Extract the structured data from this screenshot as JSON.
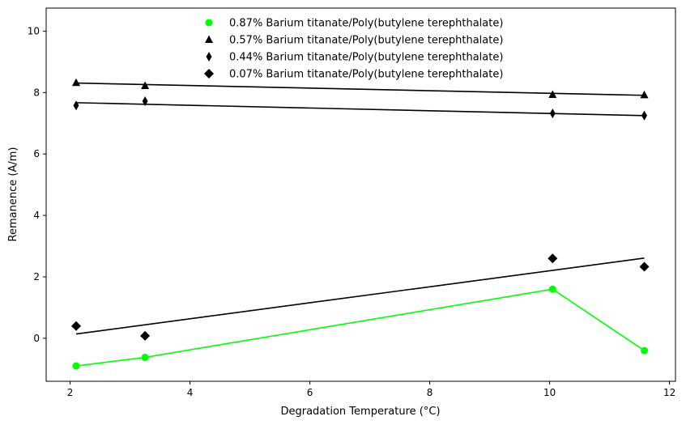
{
  "chart_data": {
    "type": "scatter",
    "title": "",
    "xlabel": "Degradation Temperature (°C)",
    "ylabel": "Remanence (A/m)",
    "xlim": [
      1.6,
      12.1
    ],
    "ylim": [
      -1.4,
      10.75
    ],
    "xticks": [
      2,
      4,
      6,
      8,
      10,
      12
    ],
    "yticks": [
      0,
      2,
      4,
      6,
      8,
      10
    ],
    "x_tick_labels": [
      "2",
      "4",
      "6",
      "8",
      "10",
      "12"
    ],
    "y_tick_labels": [
      "0",
      "2",
      "4",
      "6",
      "8",
      "10"
    ],
    "grid": false,
    "legend_position": "top-center",
    "series": [
      {
        "name": "0.87% Barium titanate/Poly(butylene terephthalate)",
        "marker": "circle",
        "color": "#00ff00",
        "x": [
          2.1,
          3.25,
          10.05,
          11.58
        ],
        "y": [
          -0.9,
          -0.62,
          1.6,
          -0.4
        ],
        "line": {
          "kind": "connect",
          "color": "#00ff00"
        }
      },
      {
        "name": "0.57% Barium titanate/Poly(butylene terephthalate)",
        "marker": "triangle",
        "color": "#000000",
        "x": [
          2.1,
          3.25,
          10.05,
          11.58
        ],
        "y": [
          8.32,
          8.22,
          7.93,
          7.92
        ],
        "line": {
          "kind": "fit",
          "color": "#000000",
          "x": [
            2.1,
            11.58
          ],
          "y": [
            8.31,
            7.91
          ]
        }
      },
      {
        "name": "0.44% Barium titanate/Poly(butylene terephthalate)",
        "marker": "thin_diamond",
        "color": "#000000",
        "x": [
          2.1,
          3.25,
          10.05,
          11.58
        ],
        "y": [
          7.58,
          7.72,
          7.32,
          7.25
        ],
        "line": {
          "kind": "fit",
          "color": "#000000",
          "x": [
            2.1,
            11.58
          ],
          "y": [
            7.67,
            7.25
          ]
        }
      },
      {
        "name": "0.07% Barium titanate/Poly(butylene terephthalate)",
        "marker": "diamond",
        "color": "#000000",
        "x": [
          2.1,
          3.25,
          10.05,
          11.58
        ],
        "y": [
          0.4,
          0.08,
          2.6,
          2.33
        ],
        "line": {
          "kind": "fit",
          "color": "#000000",
          "x": [
            2.1,
            11.58
          ],
          "y": [
            0.14,
            2.61
          ]
        }
      }
    ]
  }
}
